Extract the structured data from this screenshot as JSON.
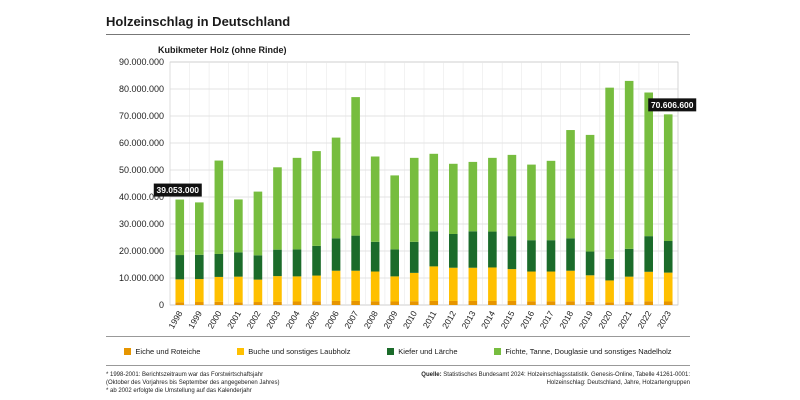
{
  "header": {
    "title": "Holzeinschlag in Deutschland"
  },
  "chart_data": {
    "type": "stacked-bar",
    "title": "Holzeinschlag in Deutschland",
    "ylabel": "Kubikmeter Holz (ohne Rinde)",
    "ylim": [
      0,
      90000000
    ],
    "yticks": [
      "0",
      "10.000.000",
      "20.000.000",
      "30.000.000",
      "40.000.000",
      "50.000.000",
      "60.000.000",
      "70.000.000",
      "80.000.000",
      "90.000.000"
    ],
    "grid": true,
    "categories": [
      "1998",
      "1999",
      "2000",
      "2001",
      "2002",
      "2003",
      "2004",
      "2005",
      "2006",
      "2007",
      "2008",
      "2009",
      "2010",
      "2011",
      "2012",
      "2013",
      "2014",
      "2015",
      "2016",
      "2017",
      "2018",
      "2019",
      "2020",
      "2021",
      "2022",
      "2023"
    ],
    "series": [
      {
        "name": "Eiche und Roteiche",
        "color": "#e69500",
        "values": [
          1000000,
          1100000,
          1200000,
          1000000,
          1100000,
          1200000,
          1300000,
          1400000,
          1500000,
          1500000,
          1400000,
          1300000,
          1400000,
          1500000,
          1500000,
          1500000,
          1500000,
          1500000,
          1400000,
          1400000,
          1400000,
          1200000,
          1000000,
          1100000,
          1400000,
          1300000
        ]
      },
      {
        "name": "Buche und sonstiges Laubholz",
        "color": "#ffc000",
        "values": [
          8500000,
          8500000,
          9200000,
          9500000,
          8300000,
          9500000,
          9300000,
          9500000,
          11200000,
          11200000,
          11000000,
          9300000,
          10500000,
          12800000,
          12300000,
          12300000,
          12400000,
          11800000,
          11000000,
          11000000,
          11300000,
          9800000,
          8100000,
          9400000,
          10900000,
          10700000
        ]
      },
      {
        "name": "Kiefer und Lärche",
        "color": "#1b6b2a",
        "values": [
          9000000,
          9000000,
          8500000,
          9000000,
          9000000,
          9800000,
          10000000,
          11000000,
          12000000,
          13000000,
          11000000,
          10000000,
          11500000,
          13000000,
          12500000,
          13500000,
          13300000,
          12200000,
          11600000,
          11600000,
          12000000,
          8800000,
          8000000,
          10300000,
          13200000,
          11700000
        ]
      },
      {
        "name": "Fichte, Tanne, Douglasie und sonstiges Nadelholz",
        "color": "#77bd3f",
        "values": [
          20553000,
          19400000,
          34600000,
          19600000,
          23600000,
          30500000,
          33900000,
          35100000,
          37300000,
          51300000,
          31600000,
          27400000,
          31100000,
          28700000,
          26000000,
          25700000,
          27300000,
          30100000,
          28000000,
          29400000,
          40100000,
          43200000,
          63400000,
          62200000,
          53200000,
          46906600
        ]
      }
    ],
    "annotations": [
      {
        "category": "1998",
        "label": "39.053.000"
      },
      {
        "category": "2023",
        "label": "70.606.600"
      }
    ]
  },
  "legend": [
    {
      "label": "Eiche und Roteiche",
      "color": "#e69500"
    },
    {
      "label": "Buche und sonstiges Laubholz",
      "color": "#ffc000"
    },
    {
      "label": "Kiefer und Lärche",
      "color": "#1b6b2a"
    },
    {
      "label": "Fichte, Tanne, Douglasie und sonstiges Nadelholz",
      "color": "#77bd3f"
    }
  ],
  "footnotes": {
    "note1": "* 1998-2001: Berichtszeitraum war das Forstwirtschaftsjahr",
    "note1b": "(Oktober des Vorjahres bis September des angegebenen Jahres)",
    "note2": "* ab 2002 erfolgte die Umstellung auf das Kalenderjahr"
  },
  "source": {
    "line1_bold": "Quelle:",
    "line1": "Statistisches Bundesamt 2024: Holzeinschlagsstatistik. Genesis-Online, Tabelle 41261-0001:",
    "line2": "Holzeinschlag: Deutschland, Jahre, Holzartengruppen"
  }
}
